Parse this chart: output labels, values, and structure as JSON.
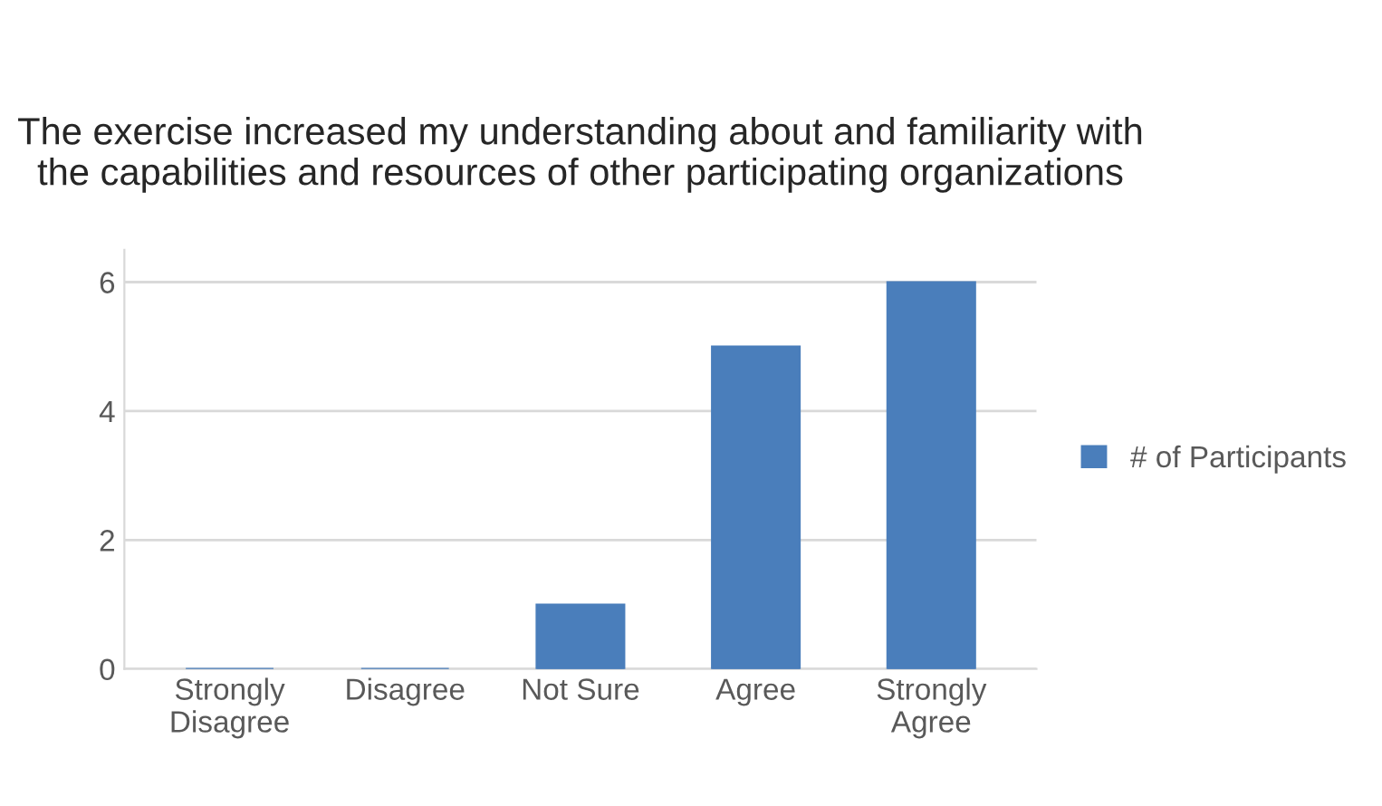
{
  "chart_data": {
    "type": "bar",
    "title": "The exercise increased my understanding about and familiarity with the capabilities and resources of other participating organizations",
    "categories": [
      "Strongly\nDisagree",
      "Disagree",
      "Not Sure",
      "Agree",
      "Strongly\nAgree"
    ],
    "series": [
      {
        "name": "# of Participants",
        "color": "#4a7ebb",
        "values": [
          0,
          0,
          1,
          5,
          6
        ]
      }
    ],
    "ylim": [
      0,
      6.5
    ],
    "yticks": [
      0,
      2,
      4,
      6
    ],
    "grid": "y",
    "legend": "right"
  }
}
